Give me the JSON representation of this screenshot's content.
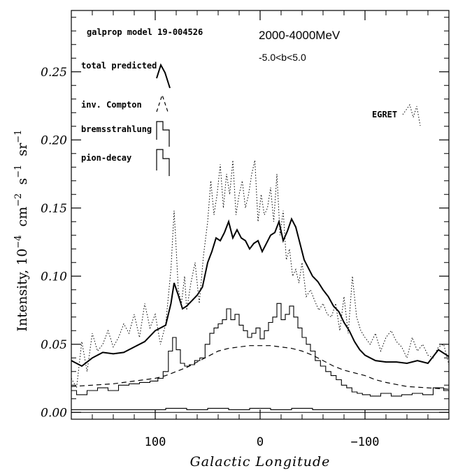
{
  "chart_data": {
    "type": "line",
    "title": "2000-4000MeV",
    "subtitle": "-5.0<b<5.0",
    "model_label": "galprop model 19-004526",
    "xlabel": "Galactic Longitude",
    "ylabel_main": "Intensity, 10",
    "ylabel_unit1": "cm",
    "ylabel_unit2": "s",
    "ylabel_unit3": "sr",
    "ylabel_exp1": "−4",
    "ylabel_exp2": "−2",
    "ylabel_exp3": "−1",
    "ylabel_exp4": "−1",
    "xlim": [
      180,
      -180
    ],
    "ylim": [
      -0.005,
      0.295
    ],
    "x_ticks": [
      {
        "value": 100,
        "label": "100"
      },
      {
        "value": 0,
        "label": "0"
      },
      {
        "value": -100,
        "label": "−100"
      }
    ],
    "y_ticks": [
      {
        "value": 0.0,
        "label": "0.00"
      },
      {
        "value": 0.05,
        "label": "0.05"
      },
      {
        "value": 0.1,
        "label": "0.10"
      },
      {
        "value": 0.15,
        "label": "0.15"
      },
      {
        "value": 0.2,
        "label": "0.20"
      },
      {
        "value": 0.25,
        "label": "0.25"
      }
    ],
    "legend": [
      {
        "label": "total predicted",
        "style": "solid-thick"
      },
      {
        "label": "inv. Compton",
        "style": "dashed"
      },
      {
        "label": "bremsstrahlung",
        "style": "histogram"
      },
      {
        "label": "pion-decay",
        "style": "histogram"
      }
    ],
    "egret_label": "EGRET",
    "series": [
      {
        "name": "total predicted",
        "style": "solid-thick",
        "x": [
          180,
          170,
          160,
          150,
          140,
          130,
          120,
          110,
          100,
          95,
          90,
          85,
          82,
          78,
          74,
          70,
          65,
          60,
          55,
          50,
          46,
          42,
          38,
          34,
          30,
          26,
          22,
          18,
          14,
          10,
          6,
          2,
          -2,
          -6,
          -10,
          -14,
          -18,
          -22,
          -26,
          -30,
          -34,
          -38,
          -42,
          -46,
          -50,
          -55,
          -60,
          -65,
          -70,
          -75,
          -80,
          -85,
          -90,
          -95,
          -100,
          -110,
          -120,
          -130,
          -140,
          -150,
          -160,
          -170,
          -180
        ],
        "y": [
          0.038,
          0.034,
          0.04,
          0.044,
          0.043,
          0.044,
          0.048,
          0.052,
          0.06,
          0.062,
          0.064,
          0.08,
          0.095,
          0.086,
          0.076,
          0.078,
          0.082,
          0.086,
          0.092,
          0.11,
          0.118,
          0.128,
          0.126,
          0.132,
          0.14,
          0.128,
          0.134,
          0.128,
          0.126,
          0.12,
          0.124,
          0.126,
          0.118,
          0.124,
          0.13,
          0.132,
          0.14,
          0.126,
          0.133,
          0.142,
          0.136,
          0.124,
          0.112,
          0.106,
          0.1,
          0.096,
          0.09,
          0.085,
          0.078,
          0.074,
          0.066,
          0.06,
          0.052,
          0.046,
          0.042,
          0.038,
          0.037,
          0.037,
          0.036,
          0.038,
          0.036,
          0.046,
          0.041
        ]
      },
      {
        "name": "inv. Compton",
        "style": "dashed",
        "x": [
          180,
          160,
          140,
          120,
          100,
          90,
          80,
          70,
          60,
          50,
          40,
          30,
          20,
          10,
          0,
          -10,
          -20,
          -30,
          -40,
          -50,
          -60,
          -70,
          -80,
          -90,
          -100,
          -110,
          -120,
          -140,
          -160,
          -180
        ],
        "y": [
          0.019,
          0.02,
          0.021,
          0.023,
          0.025,
          0.027,
          0.03,
          0.033,
          0.037,
          0.041,
          0.045,
          0.047,
          0.048,
          0.049,
          0.049,
          0.049,
          0.048,
          0.047,
          0.045,
          0.042,
          0.038,
          0.034,
          0.031,
          0.029,
          0.027,
          0.024,
          0.022,
          0.019,
          0.018,
          0.017
        ]
      },
      {
        "name": "bremsstrahlung",
        "style": "histogram",
        "x": [
          180,
          170,
          160,
          150,
          140,
          130,
          120,
          110,
          100,
          95,
          90,
          85,
          82,
          78,
          74,
          70,
          65,
          60,
          55,
          50,
          46,
          42,
          38,
          34,
          30,
          26,
          22,
          18,
          14,
          10,
          6,
          2,
          -2,
          -6,
          -10,
          -14,
          -18,
          -22,
          -26,
          -30,
          -34,
          -38,
          -42,
          -46,
          -50,
          -55,
          -60,
          -65,
          -70,
          -75,
          -80,
          -85,
          -90,
          -95,
          -100,
          -110,
          -120,
          -130,
          -140,
          -150,
          -160,
          -170,
          -180
        ],
        "y": [
          0.016,
          0.013,
          0.016,
          0.018,
          0.016,
          0.02,
          0.021,
          0.022,
          0.023,
          0.025,
          0.03,
          0.045,
          0.055,
          0.046,
          0.036,
          0.034,
          0.035,
          0.038,
          0.04,
          0.05,
          0.058,
          0.062,
          0.065,
          0.068,
          0.076,
          0.068,
          0.072,
          0.064,
          0.06,
          0.055,
          0.058,
          0.062,
          0.054,
          0.06,
          0.066,
          0.07,
          0.08,
          0.068,
          0.072,
          0.078,
          0.07,
          0.062,
          0.055,
          0.05,
          0.045,
          0.038,
          0.034,
          0.03,
          0.027,
          0.024,
          0.02,
          0.018,
          0.015,
          0.014,
          0.013,
          0.012,
          0.014,
          0.012,
          0.013,
          0.014,
          0.013,
          0.018,
          0.016
        ]
      },
      {
        "name": "pion-decay",
        "style": "histogram",
        "x": [
          180,
          160,
          140,
          120,
          100,
          80,
          60,
          40,
          20,
          0,
          -20,
          -40,
          -60,
          -80,
          -100,
          -120,
          -140,
          -160,
          -180
        ],
        "y": [
          0.002,
          0.002,
          0.002,
          0.002,
          0.002,
          0.003,
          0.002,
          0.003,
          0.002,
          0.003,
          0.002,
          0.003,
          0.002,
          0.002,
          0.002,
          0.002,
          0.002,
          0.002,
          0.002
        ]
      },
      {
        "name": "EGRET",
        "style": "dotted",
        "x": [
          180,
          175,
          170,
          165,
          160,
          155,
          150,
          145,
          140,
          135,
          130,
          125,
          120,
          115,
          110,
          105,
          100,
          95,
          90,
          85,
          82,
          80,
          78,
          75,
          72,
          70,
          66,
          62,
          58,
          54,
          50,
          47,
          44,
          41,
          38,
          35,
          32,
          29,
          26,
          23,
          20,
          17,
          14,
          11,
          8,
          5,
          2,
          -1,
          -4,
          -7,
          -10,
          -13,
          -16,
          -19,
          -22,
          -25,
          -28,
          -31,
          -34,
          -37,
          -40,
          -44,
          -48,
          -52,
          -56,
          -60,
          -64,
          -68,
          -72,
          -76,
          -80,
          -84,
          -88,
          -92,
          -96,
          -100,
          -105,
          -110,
          -115,
          -120,
          -125,
          -130,
          -135,
          -140,
          -145,
          -150,
          -155,
          -160,
          -165,
          -170,
          -175,
          -180
        ],
        "y": [
          0.025,
          0.018,
          0.052,
          0.03,
          0.058,
          0.045,
          0.05,
          0.06,
          0.048,
          0.055,
          0.065,
          0.058,
          0.072,
          0.055,
          0.08,
          0.062,
          0.072,
          0.05,
          0.065,
          0.105,
          0.148,
          0.12,
          0.09,
          0.08,
          0.1,
          0.075,
          0.095,
          0.11,
          0.08,
          0.115,
          0.14,
          0.17,
          0.145,
          0.16,
          0.182,
          0.15,
          0.175,
          0.16,
          0.185,
          0.145,
          0.16,
          0.17,
          0.15,
          0.16,
          0.175,
          0.185,
          0.14,
          0.16,
          0.145,
          0.15,
          0.165,
          0.14,
          0.175,
          0.13,
          0.148,
          0.112,
          0.12,
          0.1,
          0.105,
          0.095,
          0.11,
          0.085,
          0.09,
          0.082,
          0.075,
          0.08,
          0.072,
          0.07,
          0.08,
          0.06,
          0.085,
          0.058,
          0.1,
          0.07,
          0.06,
          0.055,
          0.05,
          0.058,
          0.045,
          0.055,
          0.06,
          0.052,
          0.048,
          0.04,
          0.055,
          0.045,
          0.05,
          0.042,
          0.04,
          0.048,
          0.05,
          0.035
        ]
      }
    ]
  }
}
